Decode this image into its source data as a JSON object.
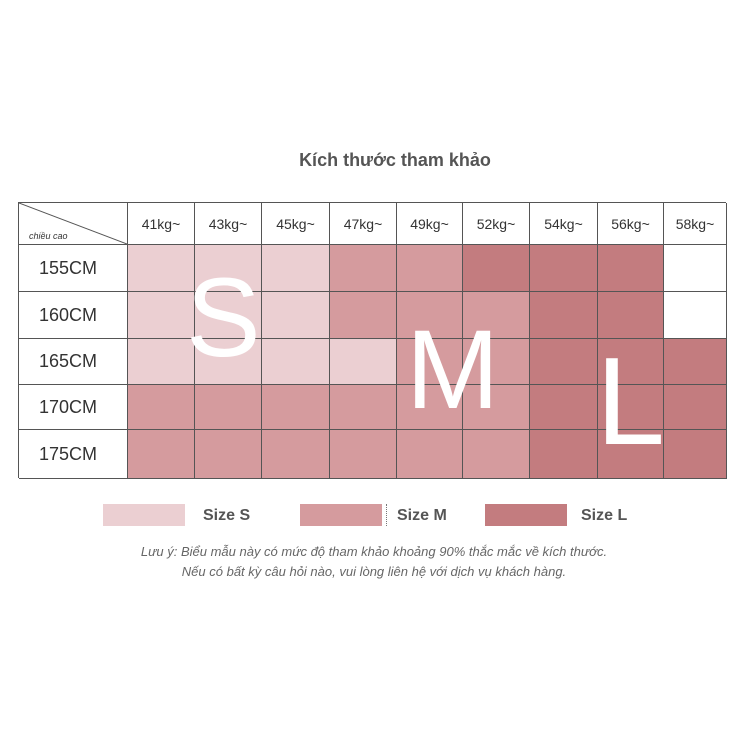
{
  "title": "Kích thước tham khảo",
  "corner_label": "chiều cao",
  "weights": [
    "41kg~",
    "43kg~",
    "45kg~",
    "47kg~",
    "49kg~",
    "52kg~",
    "54kg~",
    "56kg~",
    "58kg~"
  ],
  "heights": [
    "155CM",
    "160CM",
    "165CM",
    "170CM",
    "175CM"
  ],
  "size_map": [
    [
      "S",
      "S",
      "S",
      "M",
      "M",
      "L",
      "L",
      "L",
      ""
    ],
    [
      "S",
      "S",
      "S",
      "M",
      "M",
      "M",
      "L",
      "L",
      ""
    ],
    [
      "S",
      "S",
      "S",
      "S",
      "M",
      "M",
      "L",
      "L",
      "L"
    ],
    [
      "M",
      "M",
      "M",
      "M",
      "M",
      "M",
      "L",
      "L",
      "L"
    ],
    [
      "M",
      "M",
      "M",
      "M",
      "M",
      "M",
      "L",
      "L",
      "L"
    ]
  ],
  "overlay_letters": {
    "s": "S",
    "m": "M",
    "l": "L"
  },
  "colors": {
    "S": "#ebcfd2",
    "M": "#d59b9e",
    "L": "#c37c7f"
  },
  "legend": [
    {
      "key": "S",
      "label": "Size S"
    },
    {
      "key": "M",
      "label": "Size M"
    },
    {
      "key": "L",
      "label": "Size L"
    }
  ],
  "note_line1": "Lưu ý: Biểu mẫu này có mức độ tham khảo khoảng 90% thắc mắc về kích thước.",
  "note_line2": "Nếu có bất kỳ câu hỏi nào, vui lòng liên hệ với dịch vụ khách hàng."
}
